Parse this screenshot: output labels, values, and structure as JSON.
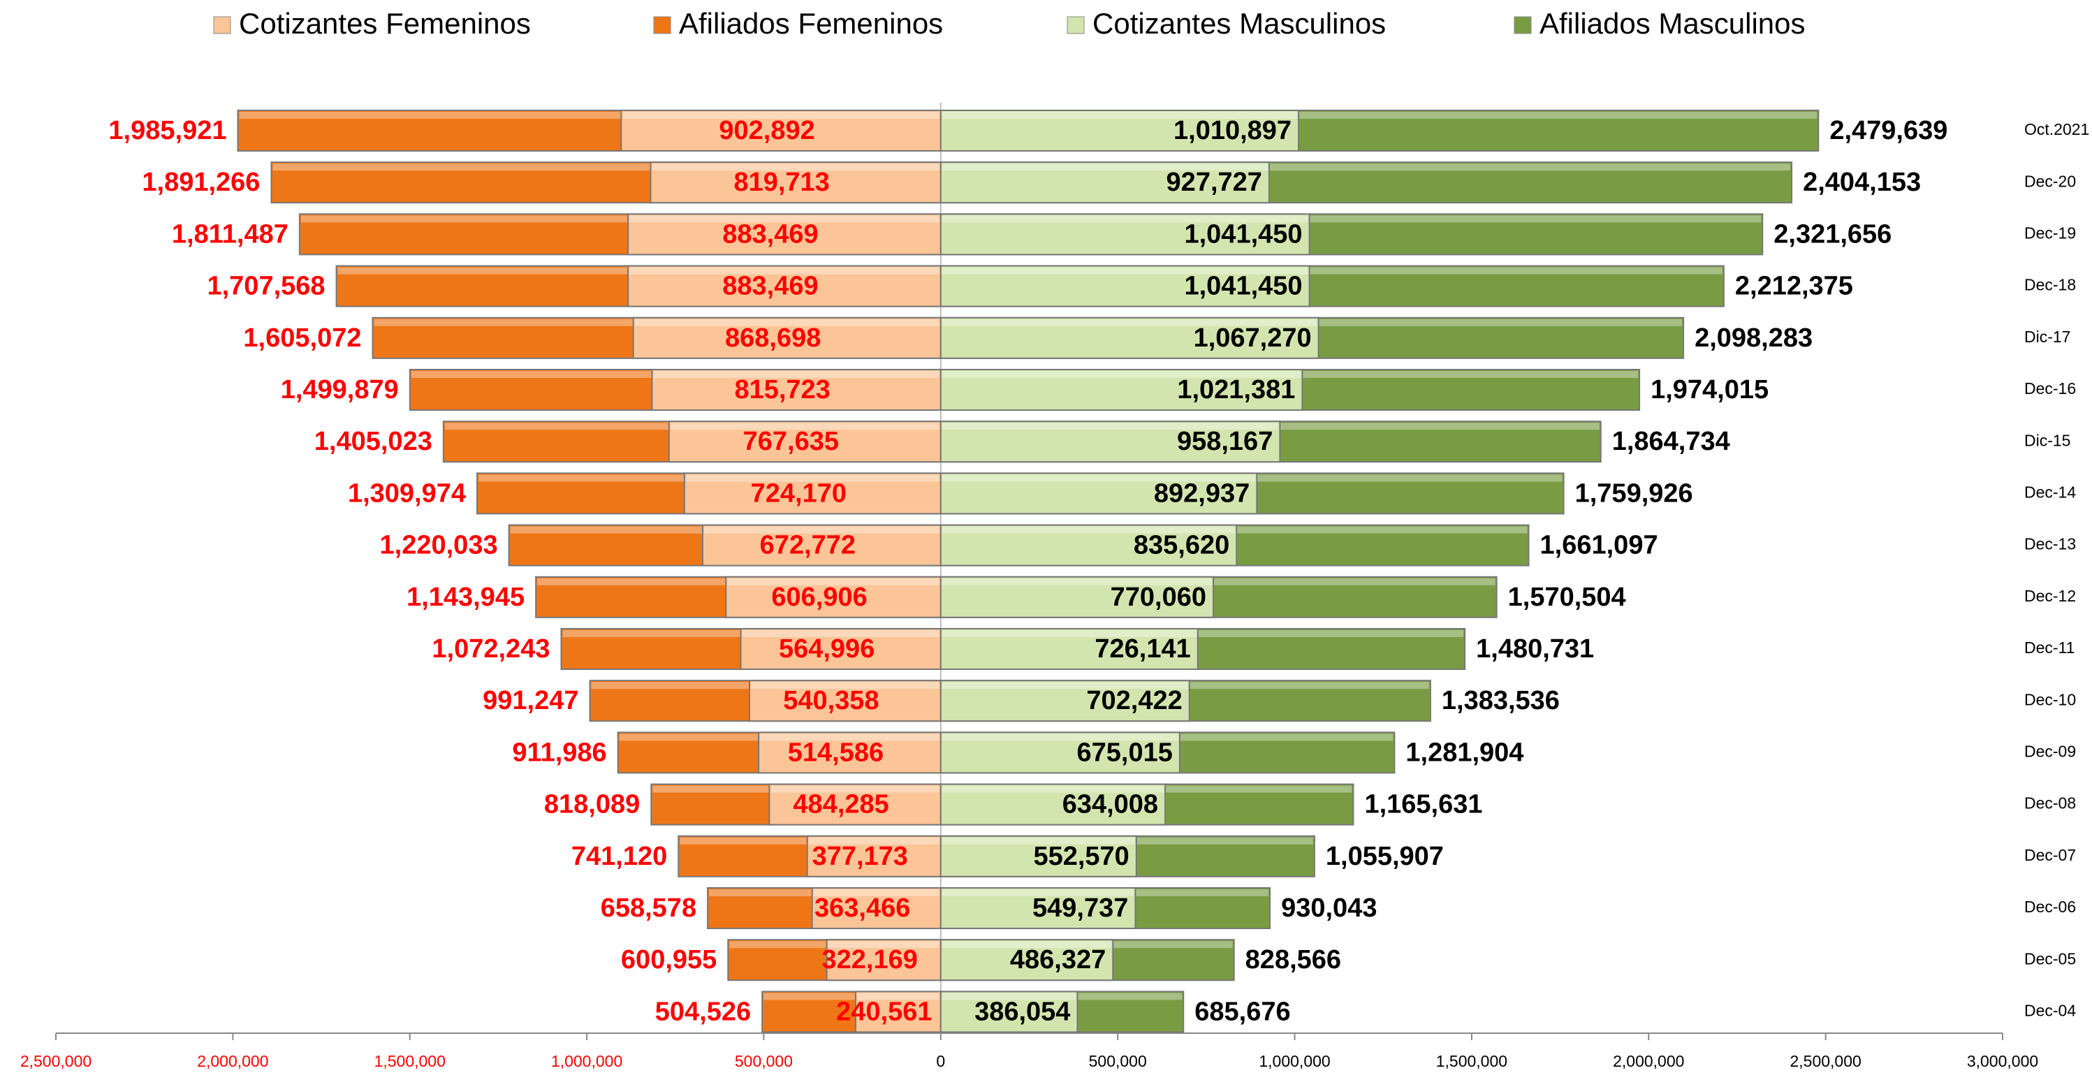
{
  "chart_data": {
    "type": "butterfly-bar",
    "categories": [
      "Oct.2021",
      "Dec-20",
      "Dec-19",
      "Dec-18",
      "Dic-17",
      "Dec-16",
      "Dic-15",
      "Dec-14",
      "Dec-13",
      "Dec-12",
      "Dec-11",
      "Dec-10",
      "Dec-09",
      "Dec-08",
      "Dec-07",
      "Dec-06",
      "Dec-05",
      "Dec-04"
    ],
    "series": [
      {
        "name": "Cotizantes Femeninos",
        "color": "#fbc597",
        "side": "left",
        "label_color": "#ff0000",
        "label_pos": "center",
        "values": [
          902892,
          819713,
          883469,
          883469,
          868698,
          815723,
          767635,
          724170,
          672772,
          606906,
          564996,
          540358,
          514586,
          484285,
          377173,
          363466,
          322169,
          240561
        ],
        "value_labels": [
          "902,892",
          "819,713",
          "883,469",
          "883,469",
          "868,698",
          "815,723",
          "767,635",
          "724,170",
          "672,772",
          "606,906",
          "564,996",
          "540,358",
          "514,586",
          "484,285",
          "377,173",
          "363,466",
          "322,169",
          "240,561"
        ]
      },
      {
        "name": "Afiliados Femeninos",
        "color": "#ef7617",
        "side": "left",
        "label_color": "#ff0000",
        "label_pos": "outside",
        "values": [
          1985921,
          1891266,
          1811487,
          1707568,
          1605072,
          1499879,
          1405023,
          1309974,
          1220033,
          1143945,
          1072243,
          991247,
          911986,
          818089,
          741120,
          658578,
          600955,
          504526
        ],
        "value_labels": [
          "1,985,921",
          "1,891,266",
          "1,811,487",
          "1,707,568",
          "1,605,072",
          "1,499,879",
          "1,405,023",
          "1,309,974",
          "1,220,033",
          "1,143,945",
          "1,072,243",
          "991,247",
          "911,986",
          "818,089",
          "741,120",
          "658,578",
          "600,955",
          "504,526"
        ]
      },
      {
        "name": "Cotizantes Masculinos",
        "color": "#d2e5ae",
        "side": "right",
        "label_color": "#000000",
        "label_pos": "inside",
        "values": [
          1010897,
          927727,
          1041450,
          1041450,
          1067270,
          1021381,
          958167,
          892937,
          835620,
          770060,
          726141,
          702422,
          675015,
          634008,
          552570,
          549737,
          486327,
          386054
        ],
        "value_labels": [
          "1,010,897",
          "927,727",
          "1,041,450",
          "1,041,450",
          "1,067,270",
          "1,021,381",
          "958,167",
          "892,937",
          "835,620",
          "770,060",
          "726,141",
          "702,422",
          "675,015",
          "634,008",
          "552,570",
          "549,737",
          "486,327",
          "386,054"
        ]
      },
      {
        "name": "Afiliados Masculinos",
        "color": "#799c43",
        "side": "right",
        "label_color": "#000000",
        "label_pos": "outside",
        "values": [
          2479639,
          2404153,
          2321656,
          2212375,
          2098283,
          1974015,
          1864734,
          1759926,
          1661097,
          1570504,
          1480731,
          1383536,
          1281904,
          1165631,
          1055907,
          930043,
          828566,
          685676
        ],
        "value_labels": [
          "2,479,639",
          "2,404,153",
          "2,321,656",
          "2,212,375",
          "2,098,283",
          "1,974,015",
          "1,864,734",
          "1,759,926",
          "1,661,097",
          "1,570,504",
          "1,480,731",
          "1,383,536",
          "1,281,904",
          "1,165,631",
          "1,055,907",
          "930,043",
          "828,566",
          "685,676"
        ]
      }
    ],
    "xlim": [
      -2500000,
      3000000
    ],
    "xticks": [
      {
        "value": -2500000,
        "label": "2,500,000"
      },
      {
        "value": -2000000,
        "label": "2,000,000"
      },
      {
        "value": -1500000,
        "label": "1,500,000"
      },
      {
        "value": -1000000,
        "label": "1,000,000"
      },
      {
        "value": -500000,
        "label": "500,000"
      },
      0,
      {
        "value": 500000,
        "label": "500,000"
      },
      {
        "value": 1000000,
        "label": "1,000,000"
      },
      {
        "value": 1500000,
        "label": "1,500,000"
      },
      {
        "value": 2000000,
        "label": "2,000,000"
      },
      {
        "value": 2500000,
        "label": "2,500,000"
      },
      {
        "value": 3000000,
        "label": "3,000,000"
      }
    ],
    "legend": "top"
  }
}
